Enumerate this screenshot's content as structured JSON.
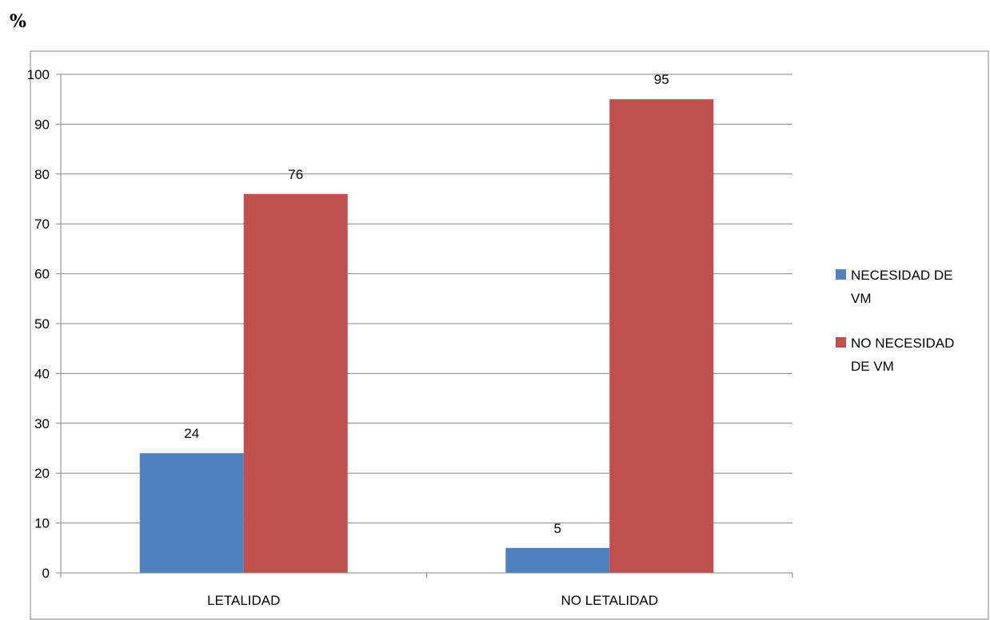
{
  "unit_label": "%",
  "colors": {
    "series_0": "#4f81bd",
    "series_1": "#c0504d",
    "grid": "#868686",
    "frame": "#868686"
  },
  "chart_data": {
    "type": "bar",
    "title": "",
    "xlabel": "",
    "ylabel": "%",
    "ylim": [
      0,
      100
    ],
    "yticks": [
      0,
      10,
      20,
      30,
      40,
      50,
      60,
      70,
      80,
      90,
      100
    ],
    "categories": [
      "LETALIDAD",
      "NO LETALIDAD"
    ],
    "series": [
      {
        "name": "NECESIDAD DE VM",
        "values": [
          24,
          5
        ]
      },
      {
        "name": "NO NECESIDAD DE VM",
        "values": [
          76,
          95
        ]
      }
    ],
    "data_labels": true,
    "grid": true,
    "legend_position": "right"
  }
}
